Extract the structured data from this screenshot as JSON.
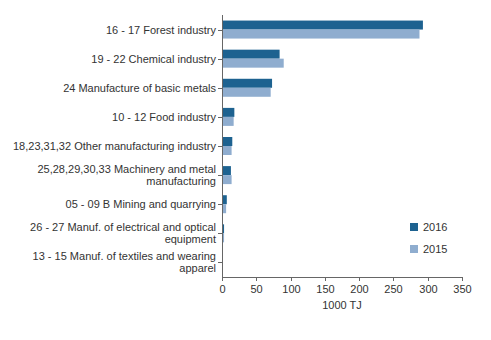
{
  "chart_data": {
    "type": "bar",
    "orientation": "horizontal",
    "categories": [
      "16 - 17 Forest industry",
      "19 - 22 Chemical industry",
      "24 Manufacture of basic metals",
      "10 - 12 Food industry",
      "18,23,31,32 Other manufacturing industry",
      "25,28,29,30,33 Machinery and metal manufacturing",
      "05 - 09 B Mining and quarrying",
      "26 - 27 Manuf. of electrical and optical equipment",
      "13 - 15 Manuf. of textiles and wearing apparel"
    ],
    "series": [
      {
        "name": "2016",
        "color": "#1d6290",
        "values": [
          293,
          84,
          73,
          18,
          15,
          13,
          7,
          3,
          1
        ]
      },
      {
        "name": "2015",
        "color": "#8fadcf",
        "values": [
          288,
          90,
          71,
          17,
          14,
          14,
          6,
          3,
          1
        ]
      }
    ],
    "x_label": "1000 TJ",
    "xlim": [
      0,
      350
    ],
    "xticks": [
      0,
      50,
      100,
      150,
      200,
      250,
      300,
      350
    ],
    "grid": false,
    "legend": "lower right"
  }
}
